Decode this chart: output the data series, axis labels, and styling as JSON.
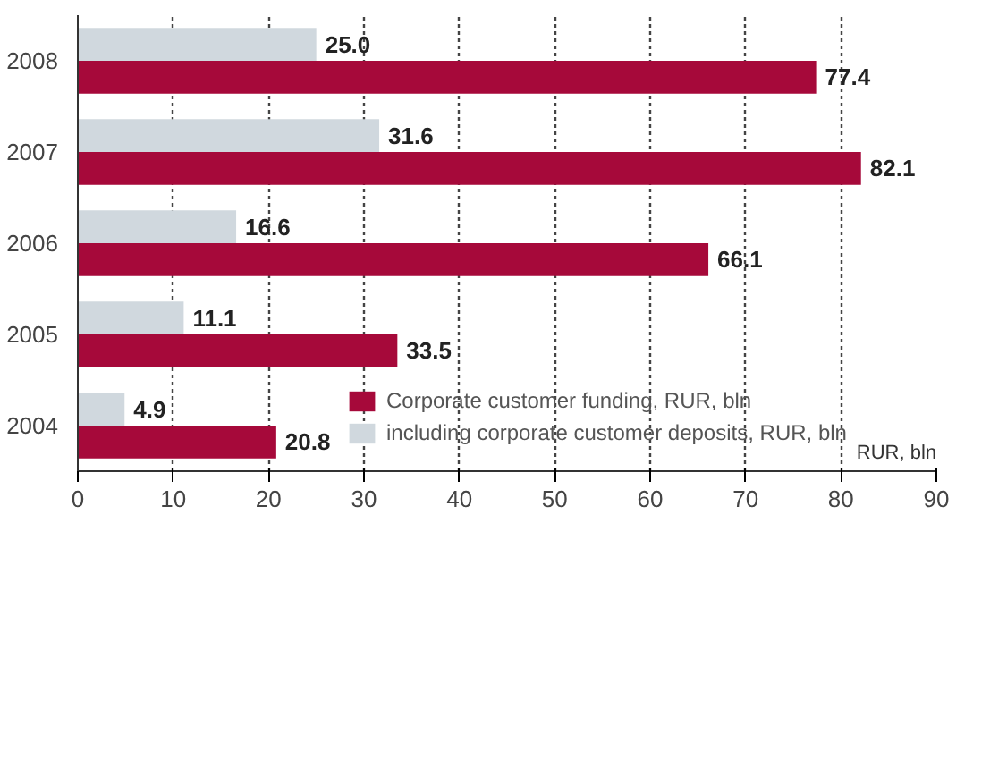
{
  "chart_data": {
    "type": "bar",
    "orientation": "horizontal",
    "categories": [
      "2008",
      "2007",
      "2006",
      "2005",
      "2004"
    ],
    "series": [
      {
        "name": "Corporate customer funding, RUR, bln",
        "color": "#a6093a",
        "values": [
          77.4,
          82.1,
          66.1,
          33.5,
          20.8
        ],
        "value_labels": [
          "77.4",
          "82.1",
          "66.1",
          "33.5",
          "20.8"
        ]
      },
      {
        "name": "including corporate customer deposits, RUR, bln",
        "color": "#d0d8de",
        "values": [
          25.0,
          31.6,
          16.6,
          11.1,
          4.9
        ],
        "value_labels": [
          "25.0",
          "31.6",
          "16.6",
          "11.1",
          "4.9"
        ]
      }
    ],
    "xlim": [
      0,
      90
    ],
    "xticks": [
      0,
      10,
      20,
      30,
      40,
      50,
      60,
      70,
      80,
      90
    ],
    "grid": "x",
    "legend": "bottom right",
    "annotations": [
      "RUR, bln"
    ]
  }
}
